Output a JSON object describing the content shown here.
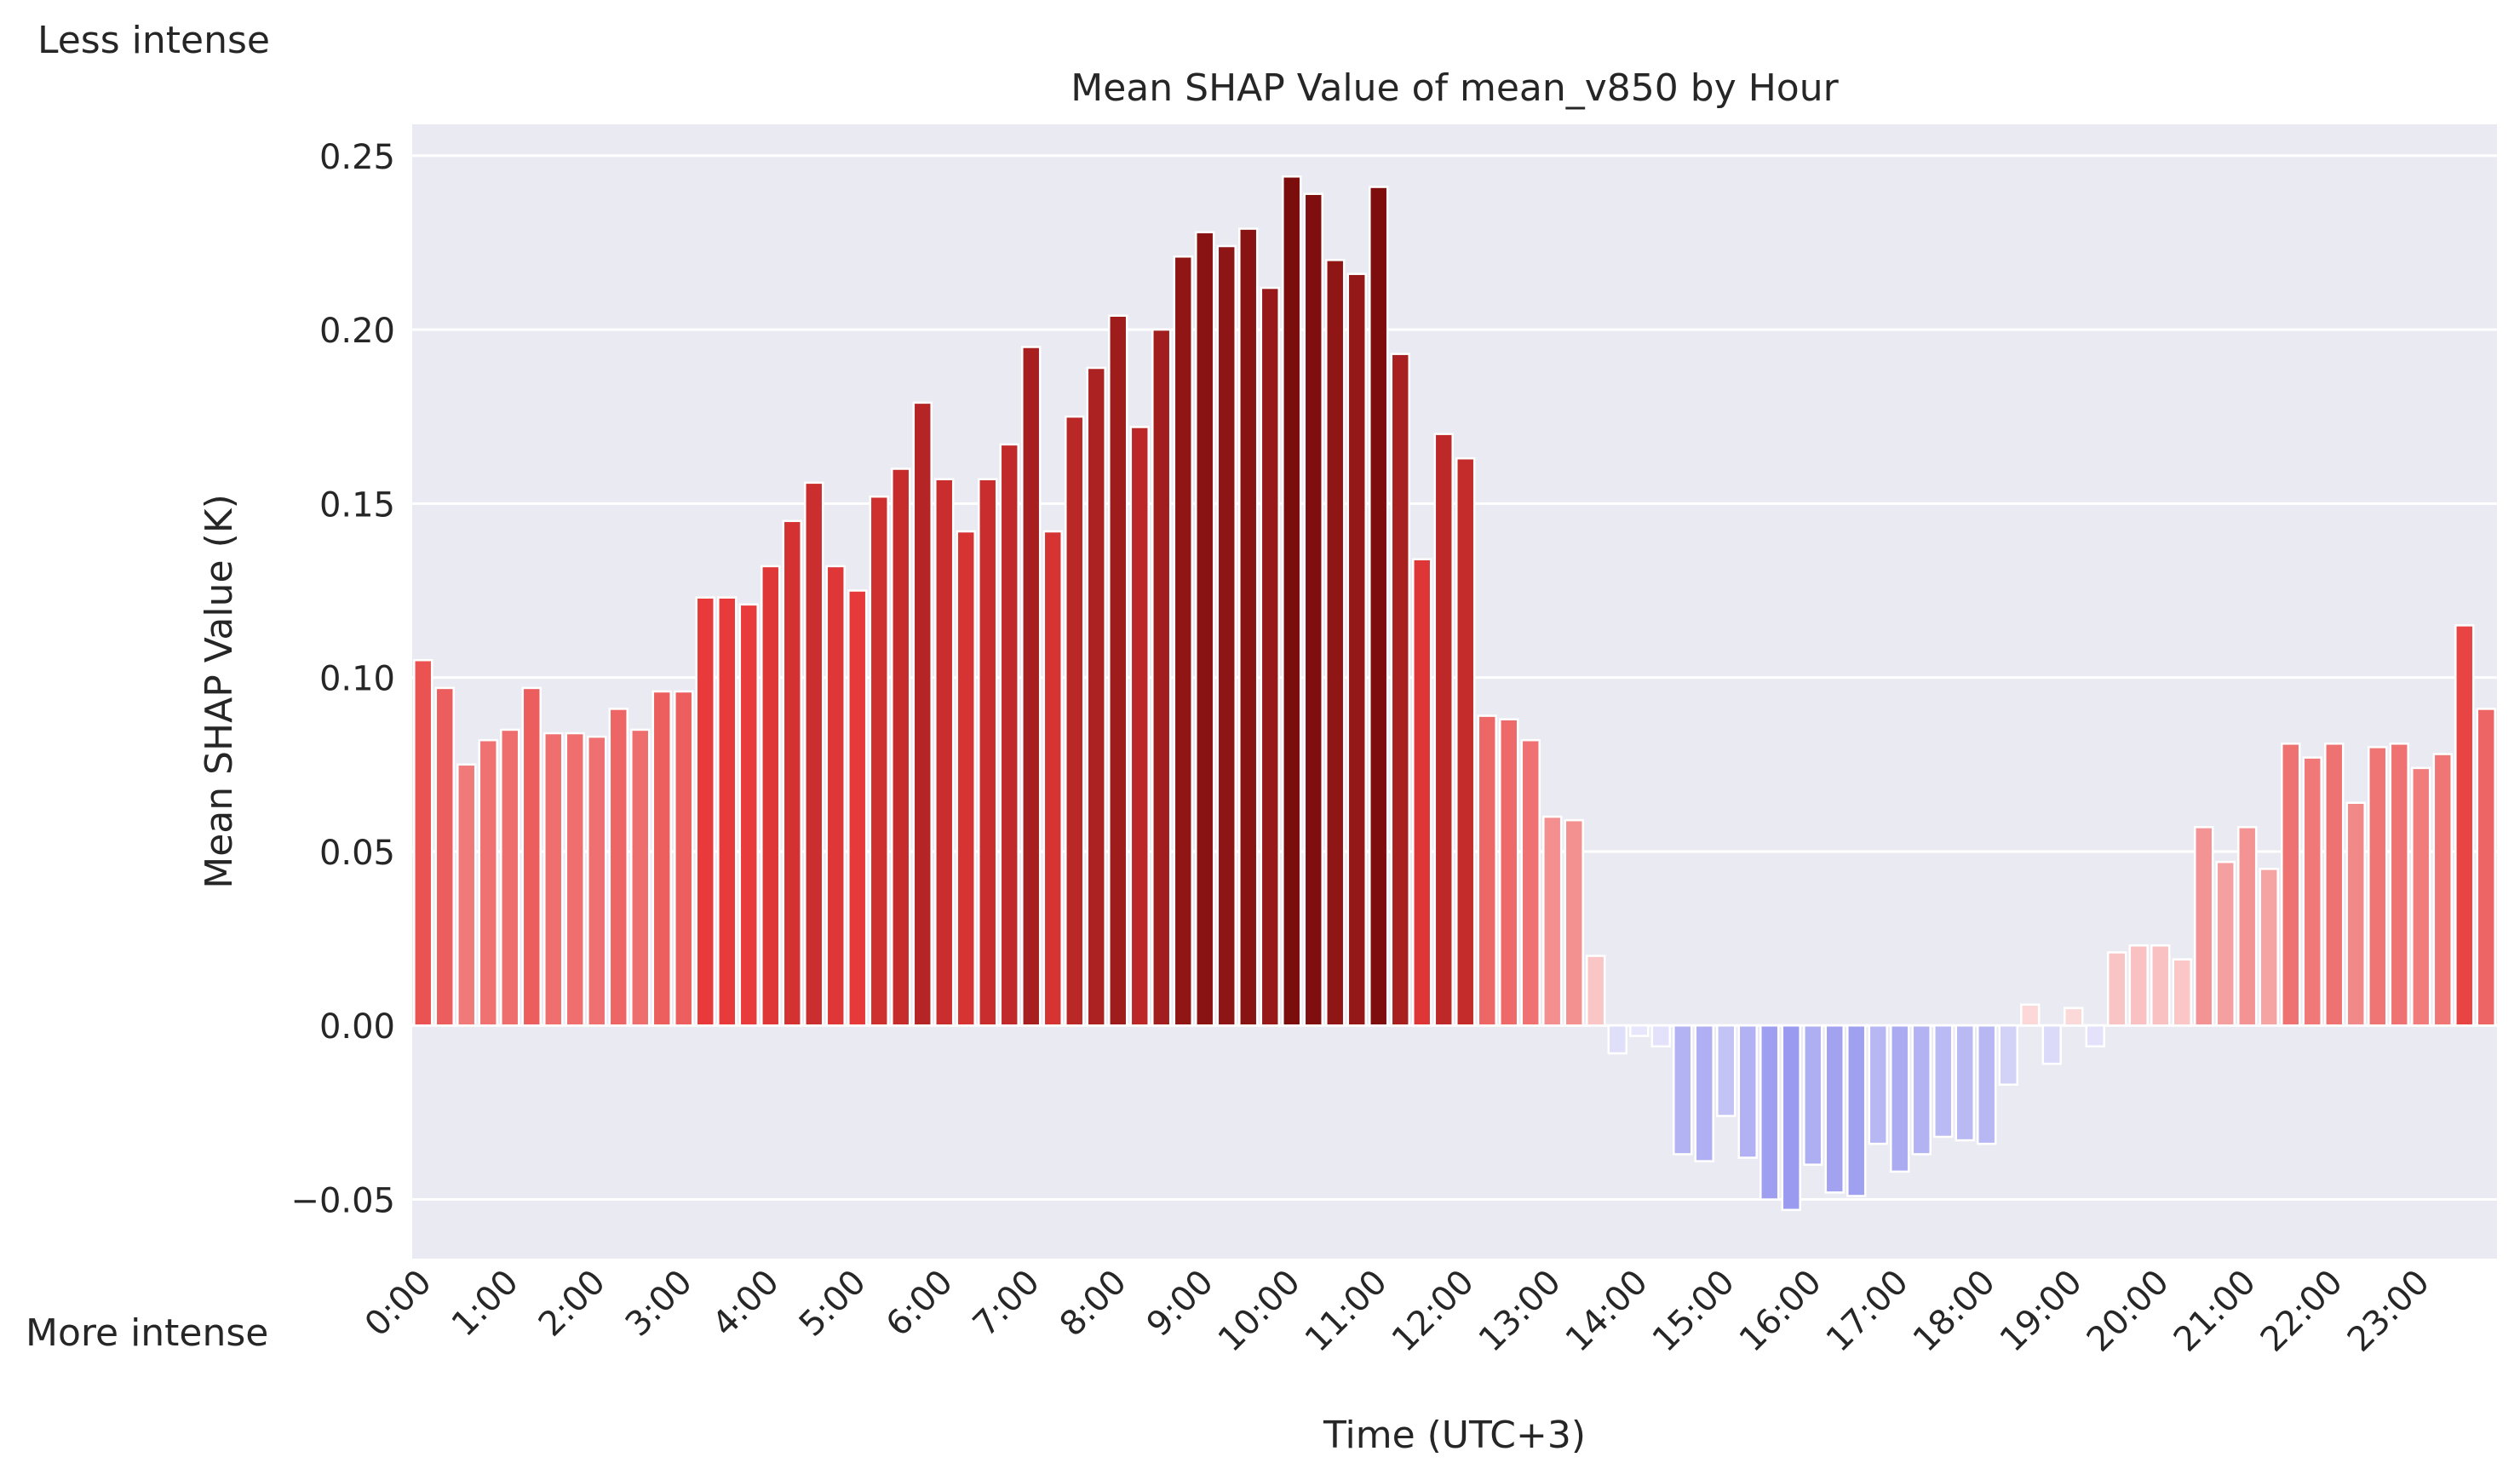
{
  "side_labels": {
    "top": "Less intense",
    "bottom": "More intense"
  },
  "colors": {
    "background": "#eaeaf2",
    "grid": "#ffffff",
    "text": "#262626",
    "positive_light": "#fde0e0",
    "positive_mid": "#e83a3a",
    "positive_dark": "#7a0d0d",
    "negative_light": "#ecebfb",
    "negative_dark": "#9a9af0"
  },
  "chart_data": {
    "type": "bar",
    "title": "Mean SHAP Value of mean_v850 by Hour",
    "xlabel": "Time (UTC+3)",
    "ylabel": "Mean SHAP Value (K)",
    "ylim": [
      -0.067,
      0.259
    ],
    "yticks": [
      -0.05,
      0.0,
      0.05,
      0.1,
      0.15,
      0.2,
      0.25
    ],
    "ytick_labels": [
      "−0.05",
      "0.00",
      "0.05",
      "0.10",
      "0.15",
      "0.20",
      "0.25"
    ],
    "xtick_labels": [
      "0:00",
      "1:00",
      "2:00",
      "3:00",
      "4:00",
      "5:00",
      "6:00",
      "7:00",
      "8:00",
      "9:00",
      "10:00",
      "11:00",
      "12:00",
      "13:00",
      "14:00",
      "15:00",
      "16:00",
      "17:00",
      "18:00",
      "19:00",
      "20:00",
      "21:00",
      "22:00",
      "23:00"
    ],
    "bars_per_hour": 4,
    "grid": true,
    "values": [
      0.105,
      0.097,
      0.075,
      0.082,
      0.085,
      0.097,
      0.084,
      0.084,
      0.083,
      0.091,
      0.085,
      0.096,
      0.096,
      0.123,
      0.123,
      0.121,
      0.132,
      0.145,
      0.156,
      0.132,
      0.125,
      0.152,
      0.16,
      0.179,
      0.157,
      0.142,
      0.157,
      0.167,
      0.195,
      0.142,
      0.175,
      0.189,
      0.204,
      0.172,
      0.2,
      0.221,
      0.228,
      0.224,
      0.229,
      0.212,
      0.244,
      0.239,
      0.22,
      0.216,
      0.241,
      0.193,
      0.134,
      0.17,
      0.163,
      0.089,
      0.088,
      0.082,
      0.06,
      0.059,
      0.02,
      -0.008,
      -0.003,
      -0.006,
      -0.037,
      -0.039,
      -0.026,
      -0.038,
      -0.05,
      -0.053,
      -0.04,
      -0.048,
      -0.049,
      -0.034,
      -0.042,
      -0.037,
      -0.032,
      -0.033,
      -0.034,
      -0.017,
      0.006,
      -0.011,
      0.005,
      -0.006,
      0.021,
      0.023,
      0.023,
      0.019,
      0.057,
      0.047,
      0.057,
      0.045,
      0.081,
      0.077,
      0.081,
      0.064,
      0.08,
      0.081,
      0.074,
      0.078,
      0.115,
      0.091
    ]
  }
}
